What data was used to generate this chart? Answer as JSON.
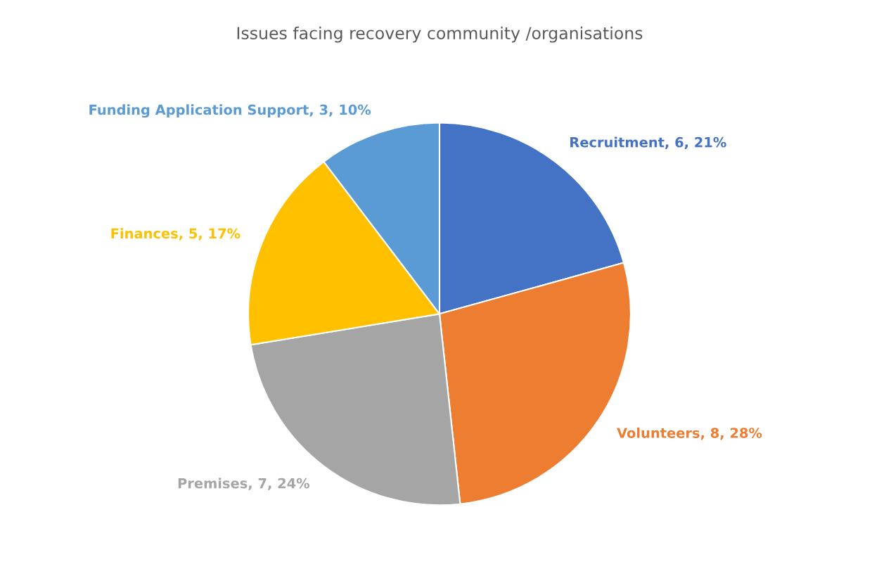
{
  "chart_data": {
    "type": "pie",
    "title": "Issues facing recovery community /organisations",
    "categories": [
      "Recruitment",
      "Volunteers",
      "Premises",
      "Finances",
      "Funding Application Support"
    ],
    "values": [
      6,
      8,
      7,
      5,
      3
    ],
    "value_labels": [
      "6, 21%",
      "8, 28%",
      "7, 24%",
      "5, 17%",
      "3, 10%"
    ],
    "colors": [
      "#4472c4",
      "#ed7d31",
      "#a5a5a5",
      "#ffc000",
      "#5b9bd5"
    ],
    "legend": false
  }
}
